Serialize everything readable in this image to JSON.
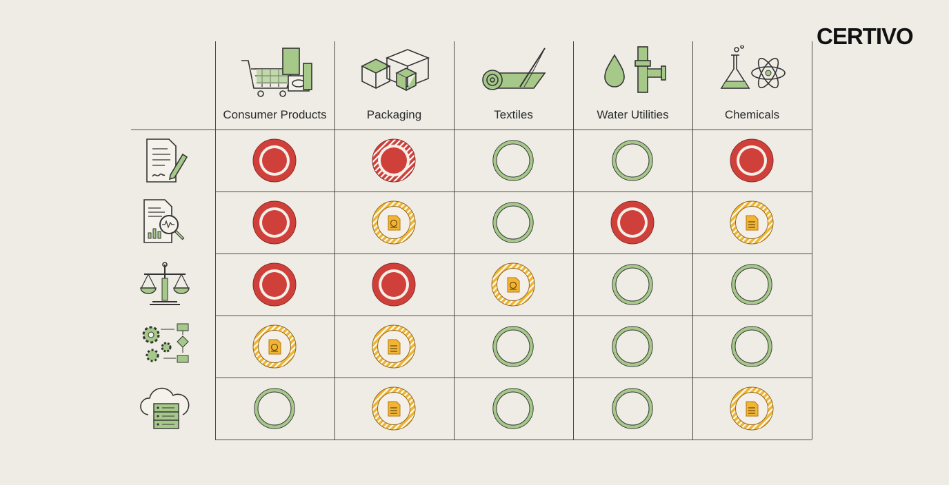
{
  "brand": {
    "logo_text": "CERTIVO"
  },
  "colors": {
    "background": "#eeece5",
    "red": "#d0403a",
    "green": "#a6c98a",
    "orange": "#f2b433",
    "line": "#4a4640"
  },
  "columns": [
    {
      "label": "Consumer Products",
      "icon": "shopping-cart-icon"
    },
    {
      "label": "Packaging",
      "icon": "boxes-icon"
    },
    {
      "label": "Textiles",
      "icon": "fabric-roll-needle-icon"
    },
    {
      "label": "Water Utilities",
      "icon": "water-drop-pipe-icon"
    },
    {
      "label": "Chemicals",
      "icon": "flask-atom-icon"
    }
  ],
  "rows": [
    {
      "icon": "document-sign-icon"
    },
    {
      "icon": "report-analysis-icon"
    },
    {
      "icon": "scales-icon"
    },
    {
      "icon": "gears-workflow-icon"
    },
    {
      "icon": "cloud-server-icon"
    }
  ],
  "status_legend": {
    "red": "solid red dot with ring",
    "red-striped": "red dot with striped ring",
    "orange-seal": "orange striped ring with certificate document",
    "orange-doc": "orange striped ring with document",
    "green": "green ring"
  },
  "grid": [
    [
      "red",
      "red-striped",
      "green",
      "green",
      "red"
    ],
    [
      "red",
      "orange-seal",
      "green",
      "red",
      "orange-doc"
    ],
    [
      "red",
      "red",
      "orange-seal",
      "green",
      "green"
    ],
    [
      "orange-seal",
      "orange-doc",
      "green",
      "green",
      "green"
    ],
    [
      "green",
      "orange-doc",
      "green",
      "green",
      "orange-doc"
    ]
  ]
}
